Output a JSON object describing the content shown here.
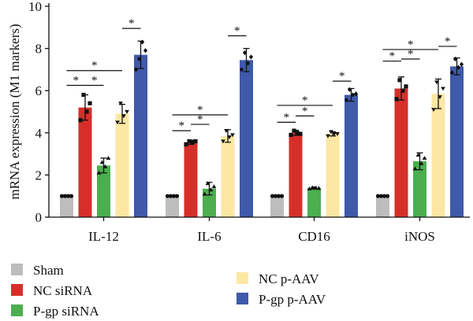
{
  "chart_data": {
    "type": "bar",
    "ylabel": "mRNA expression (M1 markers)",
    "ylim": [
      0,
      10
    ],
    "yticks": [
      "0",
      "2",
      "4",
      "6",
      "8",
      "10"
    ],
    "categories": [
      "IL-12",
      "IL-6",
      "CD16",
      "iNOS"
    ],
    "series": [
      {
        "name": "Sham",
        "color": "#bdbdbd",
        "marker": "circle",
        "values": [
          1.0,
          1.0,
          1.0,
          1.0
        ],
        "errors": [
          0.0,
          0.0,
          0.0,
          0.0
        ]
      },
      {
        "name": "NC siRNA",
        "color": "#d62f2a",
        "marker": "square",
        "values": [
          5.2,
          3.55,
          4.0,
          6.1
        ],
        "errors": [
          0.6,
          0.1,
          0.12,
          0.55
        ]
      },
      {
        "name": "P-gp siRNA",
        "color": "#4cae4f",
        "marker": "triangle-up",
        "values": [
          2.45,
          1.35,
          1.38,
          2.65
        ],
        "errors": [
          0.35,
          0.3,
          0.05,
          0.4
        ]
      },
      {
        "name": "NC p-AAV",
        "color": "#fde7a4",
        "marker": "triangle-down",
        "values": [
          4.9,
          3.85,
          3.95,
          5.85
        ],
        "errors": [
          0.45,
          0.3,
          0.1,
          0.7
        ]
      },
      {
        "name": "P-gp p-AAV",
        "color": "#3e5aa9",
        "marker": "diamond",
        "values": [
          7.7,
          7.45,
          5.8,
          7.15
        ],
        "errors": [
          0.65,
          0.55,
          0.3,
          0.4
        ]
      }
    ],
    "points": [
      [
        [
          1,
          1,
          1,
          1
        ],
        [
          4.6,
          5.8,
          5.0,
          5.4
        ],
        [
          2.1,
          2.6,
          2.4,
          2.8
        ],
        [
          4.5,
          5.4,
          4.8,
          5.0
        ],
        [
          7.0,
          7.5,
          8.3,
          7.9
        ]
      ],
      [
        [
          1,
          1,
          1,
          1
        ],
        [
          3.45,
          3.6,
          3.55,
          3.6
        ],
        [
          1.1,
          1.6,
          1.3,
          1.45
        ],
        [
          3.6,
          4.1,
          3.8,
          3.9
        ],
        [
          7.0,
          7.8,
          7.3,
          7.6
        ]
      ],
      [
        [
          1,
          1,
          1,
          1
        ],
        [
          3.9,
          4.1,
          4.0,
          3.95
        ],
        [
          1.35,
          1.4,
          1.38,
          1.37
        ],
        [
          3.85,
          4.05,
          3.95,
          3.95
        ],
        [
          5.55,
          6.05,
          5.8,
          5.85
        ]
      ],
      [
        [
          1,
          1,
          1,
          1
        ],
        [
          5.6,
          6.5,
          6.0,
          6.2
        ],
        [
          2.3,
          2.95,
          2.55,
          2.8
        ],
        [
          5.1,
          6.4,
          5.7,
          6.1
        ],
        [
          6.85,
          7.5,
          7.1,
          7.25
        ]
      ]
    ],
    "significance": [
      {
        "category": 0,
        "from": 0,
        "to": 1,
        "y": 6.25,
        "label": "*"
      },
      {
        "category": 0,
        "from": 1,
        "to": 2,
        "y": 6.25,
        "label": "*"
      },
      {
        "category": 0,
        "from": 0,
        "to": 3,
        "y": 6.95,
        "label": "*"
      },
      {
        "category": 0,
        "from": 3,
        "to": 4,
        "y": 8.95,
        "label": "*"
      },
      {
        "category": 1,
        "from": 0,
        "to": 1,
        "y": 4.1,
        "label": "*"
      },
      {
        "category": 1,
        "from": 1,
        "to": 2,
        "y": 4.4,
        "label": "*"
      },
      {
        "category": 1,
        "from": 0,
        "to": 3,
        "y": 4.85,
        "label": "*"
      },
      {
        "category": 1,
        "from": 3,
        "to": 4,
        "y": 8.6,
        "label": "*"
      },
      {
        "category": 2,
        "from": 0,
        "to": 1,
        "y": 4.5,
        "label": "*"
      },
      {
        "category": 2,
        "from": 1,
        "to": 2,
        "y": 4.8,
        "label": "*"
      },
      {
        "category": 2,
        "from": 0,
        "to": 3,
        "y": 5.3,
        "label": "*"
      },
      {
        "category": 2,
        "from": 3,
        "to": 4,
        "y": 6.45,
        "label": "*"
      },
      {
        "category": 3,
        "from": 0,
        "to": 1,
        "y": 7.4,
        "label": "*"
      },
      {
        "category": 3,
        "from": 1,
        "to": 2,
        "y": 7.5,
        "label": "*"
      },
      {
        "category": 3,
        "from": 0,
        "to": 3,
        "y": 7.95,
        "label": "*"
      },
      {
        "category": 3,
        "from": 3,
        "to": 4,
        "y": 8.1,
        "label": "*"
      }
    ],
    "legend": {
      "position": "bottom"
    }
  }
}
